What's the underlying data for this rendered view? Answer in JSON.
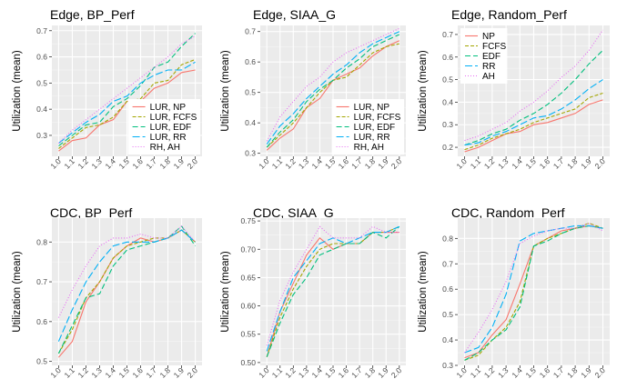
{
  "chart_data": [
    {
      "type": "line",
      "title": "Edge, BP_Perf",
      "ylabel": "Utilization (mean)",
      "ylim": [
        0.22,
        0.72
      ],
      "yticks": [
        0.3,
        0.4,
        0.5,
        0.6,
        0.7
      ],
      "ytick_labels": [
        "0.3",
        "0.4",
        "0.5",
        "0.6",
        "0.7"
      ],
      "categories": [
        "1.0",
        "1.1",
        "1.2",
        "1.3",
        "1.4",
        "1.5",
        "1.6",
        "1.7",
        "1.8",
        "1.9",
        "2.0"
      ],
      "legend": "inside-right-bottom",
      "series": [
        {
          "name": "LUR, NP",
          "values": [
            0.24,
            0.28,
            0.29,
            0.34,
            0.36,
            0.43,
            0.43,
            0.48,
            0.5,
            0.54,
            0.55
          ]
        },
        {
          "name": "LUR, FCFS",
          "values": [
            0.25,
            0.29,
            0.33,
            0.34,
            0.37,
            0.43,
            0.44,
            0.5,
            0.51,
            0.57,
            0.59
          ]
        },
        {
          "name": "LUR, EDF",
          "values": [
            0.26,
            0.3,
            0.34,
            0.35,
            0.41,
            0.44,
            0.49,
            0.56,
            0.58,
            0.64,
            0.69
          ]
        },
        {
          "name": "LUR, RR",
          "values": [
            0.27,
            0.31,
            0.35,
            0.38,
            0.43,
            0.45,
            0.5,
            0.53,
            0.55,
            0.55,
            0.58
          ]
        },
        {
          "name": "RH, AH",
          "values": [
            0.27,
            0.32,
            0.36,
            0.4,
            0.44,
            0.48,
            0.52,
            0.56,
            0.6,
            0.65,
            0.68
          ]
        }
      ]
    },
    {
      "type": "line",
      "title": "Edge, SIAA_G",
      "ylabel": "Utilization (mean)",
      "ylim": [
        0.29,
        0.72
      ],
      "yticks": [
        0.3,
        0.4,
        0.5,
        0.6,
        0.7
      ],
      "ytick_labels": [
        "0.3",
        "0.4",
        "0.5",
        "0.6",
        "0.7"
      ],
      "categories": [
        "1.0",
        "1.1",
        "1.2",
        "1.3",
        "1.4",
        "1.5",
        "1.6",
        "1.7",
        "1.8",
        "1.9",
        "2.0"
      ],
      "legend": "inside-right-bottom",
      "series": [
        {
          "name": "LUR, NP",
          "values": [
            0.31,
            0.35,
            0.38,
            0.45,
            0.48,
            0.54,
            0.56,
            0.58,
            0.62,
            0.65,
            0.67
          ]
        },
        {
          "name": "LUR, FCFS",
          "values": [
            0.32,
            0.36,
            0.4,
            0.45,
            0.5,
            0.54,
            0.55,
            0.59,
            0.63,
            0.65,
            0.66
          ]
        },
        {
          "name": "LUR, EDF",
          "values": [
            0.32,
            0.37,
            0.41,
            0.47,
            0.51,
            0.54,
            0.58,
            0.61,
            0.65,
            0.67,
            0.69
          ]
        },
        {
          "name": "LUR, RR",
          "values": [
            0.33,
            0.39,
            0.43,
            0.48,
            0.52,
            0.56,
            0.59,
            0.63,
            0.66,
            0.68,
            0.7
          ]
        },
        {
          "name": "RH, AH",
          "values": [
            0.34,
            0.42,
            0.47,
            0.52,
            0.55,
            0.6,
            0.63,
            0.65,
            0.67,
            0.69,
            0.71
          ]
        }
      ]
    },
    {
      "type": "line",
      "title": "Edge, Random_Perf",
      "ylabel": "Utilization (mean)",
      "ylim": [
        0.16,
        0.74
      ],
      "yticks": [
        0.2,
        0.3,
        0.4,
        0.5,
        0.6,
        0.7
      ],
      "ytick_labels": [
        "0.2",
        "0.3",
        "0.4",
        "0.5",
        "0.6",
        "0.7"
      ],
      "categories": [
        "1.0",
        "1.1",
        "1.2",
        "1.3",
        "1.4",
        "1.5",
        "1.6",
        "1.7",
        "1.8",
        "1.9",
        "2.0"
      ],
      "legend": "inside-left-top",
      "series": [
        {
          "name": "NP",
          "values": [
            0.18,
            0.2,
            0.23,
            0.26,
            0.27,
            0.3,
            0.31,
            0.33,
            0.35,
            0.39,
            0.41
          ]
        },
        {
          "name": "FCFS",
          "values": [
            0.19,
            0.21,
            0.24,
            0.26,
            0.28,
            0.31,
            0.33,
            0.35,
            0.37,
            0.42,
            0.44
          ]
        },
        {
          "name": "EDF",
          "values": [
            0.21,
            0.23,
            0.26,
            0.28,
            0.32,
            0.35,
            0.39,
            0.44,
            0.5,
            0.57,
            0.63
          ]
        },
        {
          "name": "RR",
          "values": [
            0.21,
            0.22,
            0.25,
            0.27,
            0.3,
            0.33,
            0.34,
            0.37,
            0.41,
            0.46,
            0.5
          ]
        },
        {
          "name": "AH",
          "values": [
            0.23,
            0.25,
            0.28,
            0.31,
            0.36,
            0.4,
            0.45,
            0.51,
            0.56,
            0.63,
            0.72
          ]
        }
      ]
    },
    {
      "type": "line",
      "title": "CDC, BP_Perf",
      "ylabel": "Utilization (mean)",
      "ylim": [
        0.49,
        0.86
      ],
      "yticks": [
        0.5,
        0.6,
        0.7,
        0.8
      ],
      "ytick_labels": [
        "0.5",
        "0.6",
        "0.7",
        "0.8"
      ],
      "categories": [
        "1.0",
        "1.1",
        "1.2",
        "1.3",
        "1.4",
        "1.5",
        "1.6",
        "1.7",
        "1.8",
        "1.9",
        "2.0"
      ],
      "legend": "none",
      "series": [
        {
          "name": "LUR, NP",
          "values": [
            0.51,
            0.55,
            0.65,
            0.7,
            0.76,
            0.79,
            0.81,
            0.8,
            0.81,
            0.83,
            0.8
          ]
        },
        {
          "name": "LUR, FCFS",
          "values": [
            0.52,
            0.58,
            0.66,
            0.7,
            0.76,
            0.79,
            0.8,
            0.81,
            0.81,
            0.83,
            0.8
          ]
        },
        {
          "name": "LUR, EDF",
          "values": [
            0.52,
            0.59,
            0.66,
            0.67,
            0.74,
            0.78,
            0.79,
            0.8,
            0.81,
            0.84,
            0.79
          ]
        },
        {
          "name": "LUR, RR",
          "values": [
            0.55,
            0.63,
            0.7,
            0.75,
            0.79,
            0.8,
            0.8,
            0.8,
            0.81,
            0.83,
            0.8
          ]
        },
        {
          "name": "RH, AH",
          "values": [
            0.61,
            0.68,
            0.74,
            0.79,
            0.81,
            0.81,
            0.82,
            0.81,
            0.81,
            0.84,
            0.8
          ]
        }
      ]
    },
    {
      "type": "line",
      "title": "CDC, SIAA_G",
      "ylabel": "Utilization (mean)",
      "ylim": [
        0.495,
        0.755
      ],
      "yticks": [
        0.5,
        0.55,
        0.6,
        0.65,
        0.7,
        0.75
      ],
      "ytick_labels": [
        "0.50",
        "0.55",
        "0.60",
        "0.65",
        "0.70",
        "0.75"
      ],
      "categories": [
        "1.0",
        "1.1",
        "1.2",
        "1.3",
        "1.4",
        "1.5",
        "1.6",
        "1.7",
        "1.8",
        "1.9",
        "2.0"
      ],
      "legend": "none",
      "series": [
        {
          "name": "LUR, NP",
          "values": [
            0.51,
            0.59,
            0.64,
            0.69,
            0.72,
            0.7,
            0.71,
            0.71,
            0.73,
            0.73,
            0.73
          ]
        },
        {
          "name": "LUR, FCFS",
          "values": [
            0.51,
            0.58,
            0.63,
            0.67,
            0.7,
            0.71,
            0.71,
            0.71,
            0.73,
            0.73,
            0.74
          ]
        },
        {
          "name": "LUR, EDF",
          "values": [
            0.51,
            0.57,
            0.62,
            0.65,
            0.69,
            0.7,
            0.71,
            0.71,
            0.73,
            0.72,
            0.74
          ]
        },
        {
          "name": "LUR, RR",
          "values": [
            0.52,
            0.59,
            0.65,
            0.68,
            0.71,
            0.72,
            0.71,
            0.72,
            0.73,
            0.73,
            0.74
          ]
        },
        {
          "name": "RH, AH",
          "values": [
            0.53,
            0.61,
            0.66,
            0.7,
            0.74,
            0.72,
            0.72,
            0.72,
            0.74,
            0.73,
            0.73
          ]
        }
      ]
    },
    {
      "type": "line",
      "title": "CDC, Random_Perf",
      "ylabel": "Utilization (mean)",
      "ylim": [
        0.3,
        0.88
      ],
      "yticks": [
        0.3,
        0.4,
        0.5,
        0.6,
        0.7,
        0.8
      ],
      "ytick_labels": [
        "0.3",
        "0.4",
        "0.5",
        "0.6",
        "0.7",
        "0.8"
      ],
      "categories": [
        "1.0",
        "1.1",
        "1.2",
        "1.3",
        "1.4",
        "1.5",
        "1.6",
        "1.7",
        "1.8",
        "1.9",
        "2.0"
      ],
      "legend": "none",
      "series": [
        {
          "name": "NP",
          "values": [
            0.33,
            0.35,
            0.42,
            0.48,
            0.62,
            0.77,
            0.8,
            0.83,
            0.84,
            0.85,
            0.84
          ]
        },
        {
          "name": "FCFS",
          "values": [
            0.32,
            0.34,
            0.4,
            0.45,
            0.55,
            0.77,
            0.8,
            0.82,
            0.84,
            0.86,
            0.84
          ]
        },
        {
          "name": "EDF",
          "values": [
            0.32,
            0.35,
            0.4,
            0.44,
            0.53,
            0.77,
            0.79,
            0.82,
            0.84,
            0.85,
            0.84
          ]
        },
        {
          "name": "RR",
          "values": [
            0.35,
            0.37,
            0.45,
            0.58,
            0.79,
            0.82,
            0.83,
            0.84,
            0.85,
            0.85,
            0.84
          ]
        },
        {
          "name": "AH",
          "values": [
            0.35,
            0.43,
            0.52,
            0.63,
            0.78,
            0.81,
            0.83,
            0.84,
            0.84,
            0.86,
            0.83
          ]
        }
      ]
    }
  ],
  "style": {
    "panel_bg": "#ebebeb",
    "grid_major": "#ffffff",
    "series_colors": [
      "#f8766d",
      "#a3a500",
      "#00bf7d",
      "#00b0f6",
      "#e76bf3"
    ],
    "series_dashes": [
      "none",
      "4,2",
      "6,3",
      "8,3",
      "1,2"
    ]
  }
}
